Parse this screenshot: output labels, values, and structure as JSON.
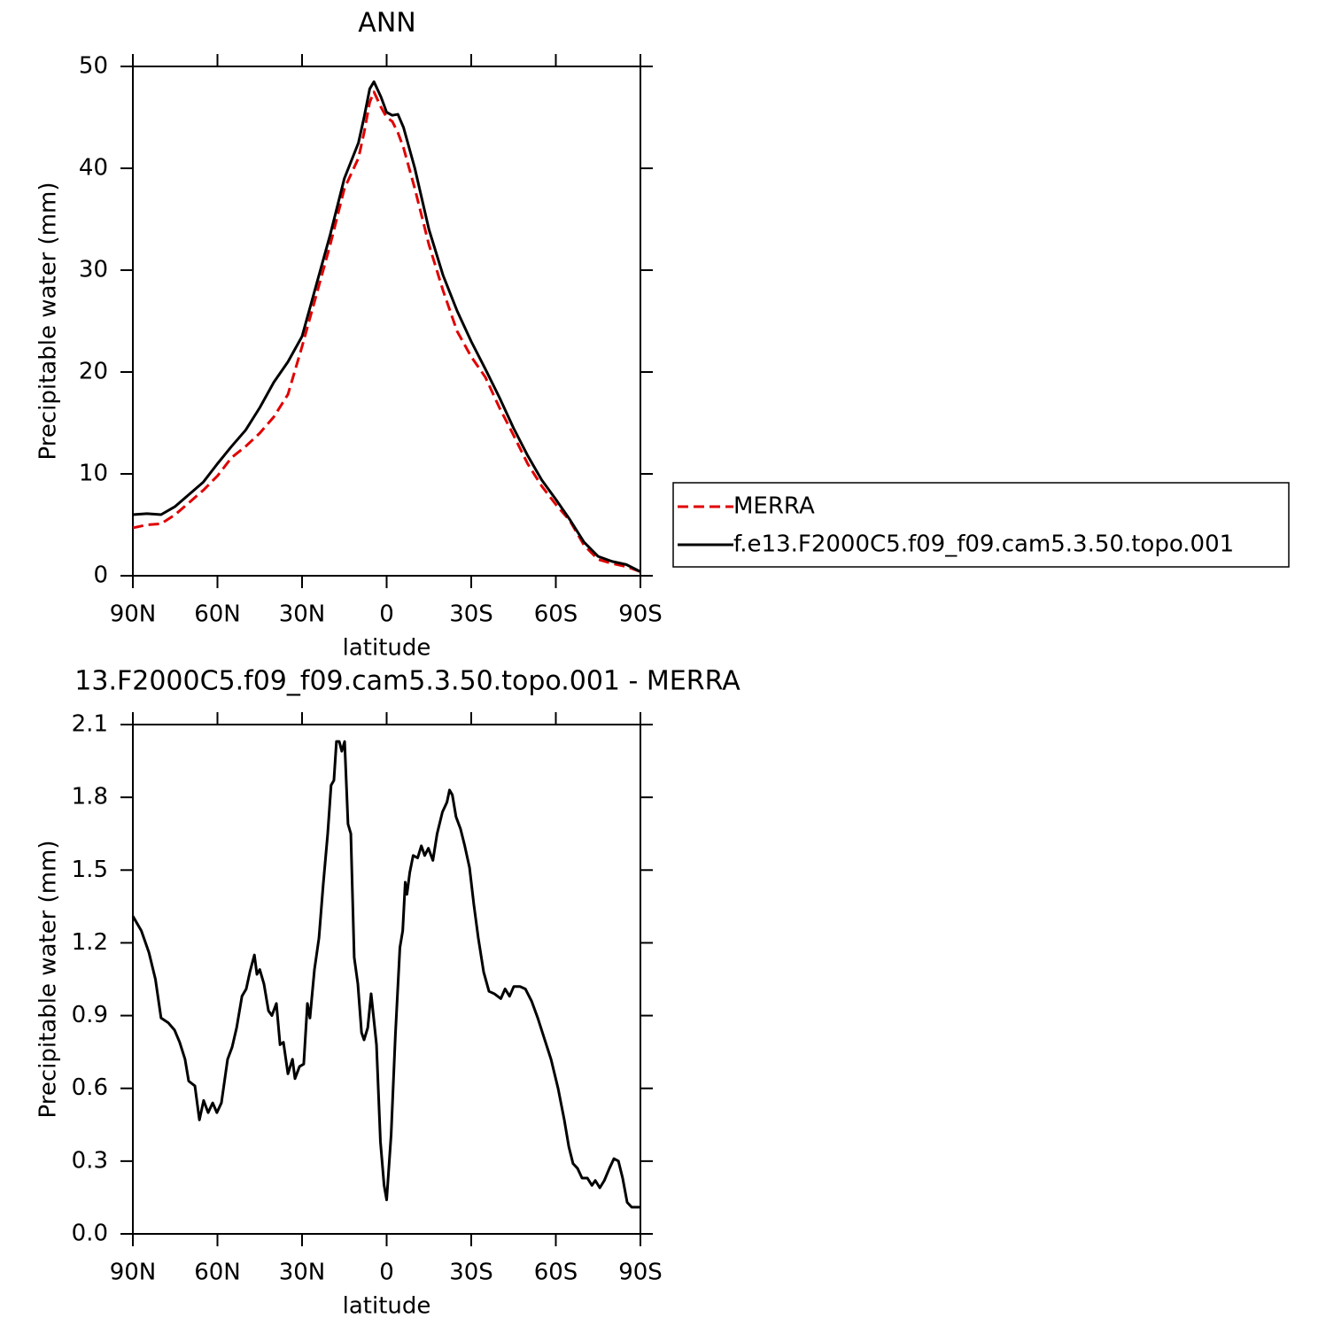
{
  "chart_data": [
    {
      "type": "line",
      "title": "ANN",
      "xlabel": "latitude",
      "ylabel": "Precipitable water (mm)",
      "x": [
        90,
        85,
        80,
        75,
        70,
        65,
        60,
        55,
        50,
        45,
        40,
        35,
        30,
        25,
        20,
        15,
        10,
        8,
        6,
        4.5,
        2,
        0,
        -2,
        -4,
        -6,
        -10,
        -15,
        -20,
        -25,
        -30,
        -35,
        -40,
        -45,
        -50,
        -55,
        -60,
        -65,
        -70,
        -75,
        -80,
        -85,
        -90
      ],
      "series": [
        {
          "name": "MERRA",
          "color": "#e00000",
          "style": "dashed",
          "values": [
            4.7,
            5.0,
            5.1,
            6.0,
            7.2,
            8.4,
            9.8,
            11.6,
            12.7,
            14.0,
            15.6,
            17.8,
            22.5,
            27.5,
            32.5,
            38,
            41,
            43.5,
            46.5,
            47.5,
            46,
            45,
            44.6,
            43.5,
            42,
            38,
            32.5,
            28,
            24,
            21.5,
            19.5,
            16.5,
            13.8,
            11,
            8.8,
            7,
            5.4,
            3,
            1.6,
            1.2,
            0.9,
            0.4
          ]
        },
        {
          "name": "f.e13.F2000C5.f09_f09.cam5.3.50.topo.001",
          "color": "#000000",
          "style": "solid",
          "values": [
            6.0,
            6.1,
            6.0,
            6.8,
            8,
            9.2,
            11,
            12.7,
            14.3,
            16.5,
            19,
            21,
            23.5,
            28.5,
            33.5,
            39,
            42.5,
            45,
            47.8,
            48.5,
            47,
            45.5,
            45.2,
            45.3,
            44,
            40,
            34,
            29.5,
            26,
            23,
            20.3,
            17.5,
            14.5,
            11.8,
            9.4,
            7.5,
            5.5,
            3.3,
            1.9,
            1.4,
            1.1,
            0.4
          ]
        }
      ],
      "xlim": [
        90,
        -90
      ],
      "xticks": [
        {
          "value": 90,
          "label": "90N"
        },
        {
          "value": 60,
          "label": "60N"
        },
        {
          "value": 30,
          "label": "30N"
        },
        0,
        {
          "value": -30,
          "label": "30S"
        },
        {
          "value": -60,
          "label": "60S"
        },
        {
          "value": -90,
          "label": "90S"
        }
      ],
      "ylim": [
        0,
        50
      ],
      "yticks": [
        0,
        10,
        20,
        30,
        40,
        50
      ],
      "legend": "outside right"
    },
    {
      "type": "line",
      "title": "13.F2000C5.f09_f09.cam5.3.50.topo.001 - MERRA",
      "xlabel": "latitude",
      "ylabel": "Precipitable water (mm)",
      "x": [
        90,
        87,
        84.3,
        82,
        80,
        77.4,
        75.2,
        73.4,
        71.5,
        70.2,
        68,
        66.4,
        64.9,
        63.3,
        61.7,
        60.2,
        58.6,
        56.4,
        54.8,
        53.2,
        51.3,
        49.8,
        48.5,
        46.9,
        46,
        45,
        43.5,
        41.9,
        40.7,
        39.1,
        37.8,
        36.6,
        35,
        33.4,
        32.5,
        30.9,
        29.4,
        28.1,
        27.2,
        25.6,
        24,
        22.5,
        20.9,
        19.7,
        18.7,
        17.8,
        16.8,
        15.9,
        14.9,
        13.7,
        12.7,
        11.5,
        10.2,
        8.9,
        8,
        6.7,
        5.5,
        3.6,
        2.2,
        0.9,
        0,
        -1.6,
        -3.1,
        -4.7,
        -5.7,
        -6.6,
        -7.2,
        -8.2,
        -9.4,
        -11,
        -12.3,
        -13.5,
        -14.8,
        -16.4,
        -17.9,
        -19.8,
        -21.4,
        -22.3,
        -23.3,
        -24.6,
        -26.2,
        -27.7,
        -29.4,
        -30.9,
        -32.5,
        -34.4,
        -36.3,
        -38.2,
        -40.5,
        -42,
        -43.6,
        -45.1,
        -47.3,
        -49.2,
        -51.4,
        -53.6,
        -55.8,
        -58.3,
        -60.8,
        -63,
        -64.6,
        -66.1,
        -67.7,
        -69.3,
        -71.2,
        -72.8,
        -74,
        -75.6,
        -77.2,
        -79,
        -80.6,
        -82.2,
        -83.7,
        -85.3,
        -86.9,
        -90
      ],
      "series": [
        {
          "color": "#000000",
          "style": "solid",
          "values": [
            1.31,
            1.25,
            1.16,
            1.05,
            0.89,
            0.87,
            0.84,
            0.79,
            0.72,
            0.63,
            0.61,
            0.47,
            0.55,
            0.5,
            0.54,
            0.5,
            0.54,
            0.72,
            0.77,
            0.85,
            0.98,
            1.01,
            1.08,
            1.15,
            1.07,
            1.09,
            1.03,
            0.92,
            0.9,
            0.95,
            0.78,
            0.79,
            0.66,
            0.72,
            0.64,
            0.69,
            0.7,
            0.95,
            0.89,
            1.09,
            1.22,
            1.44,
            1.65,
            1.85,
            1.87,
            2.03,
            2.03,
            1.99,
            2.03,
            1.69,
            1.65,
            1.14,
            1.03,
            0.83,
            0.8,
            0.85,
            0.99,
            0.78,
            0.38,
            0.2,
            0.14,
            0.41,
            0.82,
            1.18,
            1.25,
            1.45,
            1.4,
            1.49,
            1.56,
            1.55,
            1.6,
            1.56,
            1.59,
            1.54,
            1.65,
            1.74,
            1.78,
            1.83,
            1.81,
            1.72,
            1.67,
            1.6,
            1.51,
            1.36,
            1.22,
            1.08,
            1.0,
            0.99,
            0.97,
            1.01,
            0.98,
            1.02,
            1.02,
            1.01,
            0.96,
            0.89,
            0.81,
            0.72,
            0.6,
            0.47,
            0.36,
            0.29,
            0.27,
            0.23,
            0.23,
            0.2,
            0.22,
            0.19,
            0.22,
            0.27,
            0.31,
            0.3,
            0.23,
            0.13,
            0.11,
            0.11
          ]
        }
      ],
      "xlim": [
        90,
        -90
      ],
      "xticks": [
        {
          "value": 90,
          "label": "90N"
        },
        {
          "value": 60,
          "label": "60N"
        },
        {
          "value": 30,
          "label": "30N"
        },
        0,
        {
          "value": -30,
          "label": "30S"
        },
        {
          "value": -60,
          "label": "60S"
        },
        {
          "value": -90,
          "label": "90S"
        }
      ],
      "ylim": [
        0,
        2.1
      ],
      "yticks": [
        {
          "value": 0,
          "label": "0.0"
        },
        0.3,
        0.6,
        0.9,
        1.2,
        1.5,
        1.8,
        2.1
      ]
    }
  ]
}
